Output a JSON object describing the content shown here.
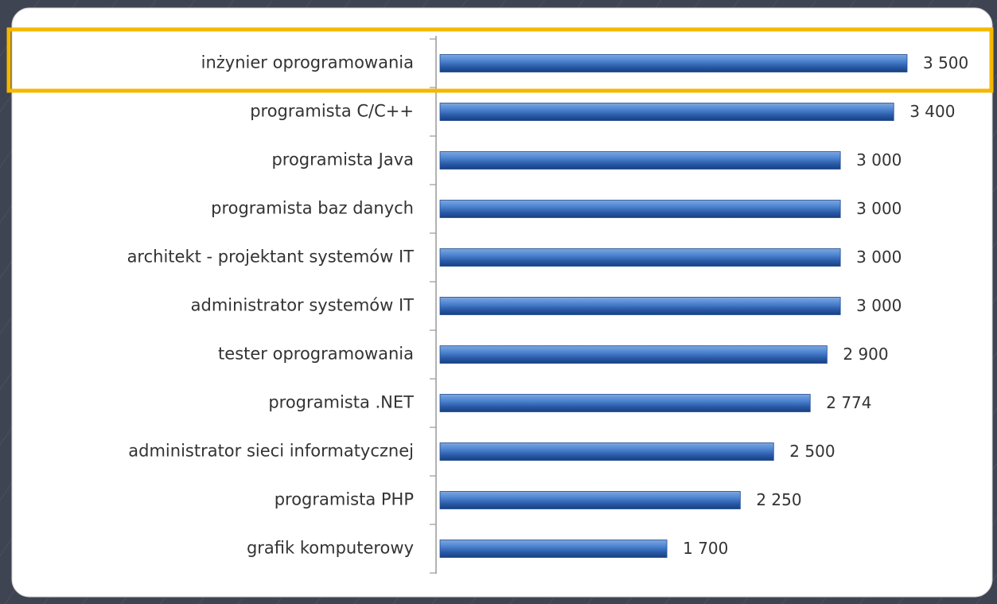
{
  "chart_data": {
    "type": "bar",
    "orientation": "horizontal",
    "categories": [
      "inżynier oprogramowania",
      "programista C/C++",
      "programista Java",
      "programista baz danych",
      "architekt - projektant systemów IT",
      "administrator systemów IT",
      "tester oprogramowania",
      "programista .NET",
      "administrator sieci informatycznej",
      "programista PHP",
      "grafik komputerowy"
    ],
    "values": [
      3500,
      3400,
      3000,
      3000,
      3000,
      3000,
      2900,
      2774,
      2500,
      2250,
      1700
    ],
    "value_labels": [
      "3 500",
      "3 400",
      "3 000",
      "3 000",
      "3 000",
      "3 000",
      "2 900",
      "2 774",
      "2 500",
      "2 250",
      "1 700"
    ],
    "color": "#3a6fc0"
  }
}
